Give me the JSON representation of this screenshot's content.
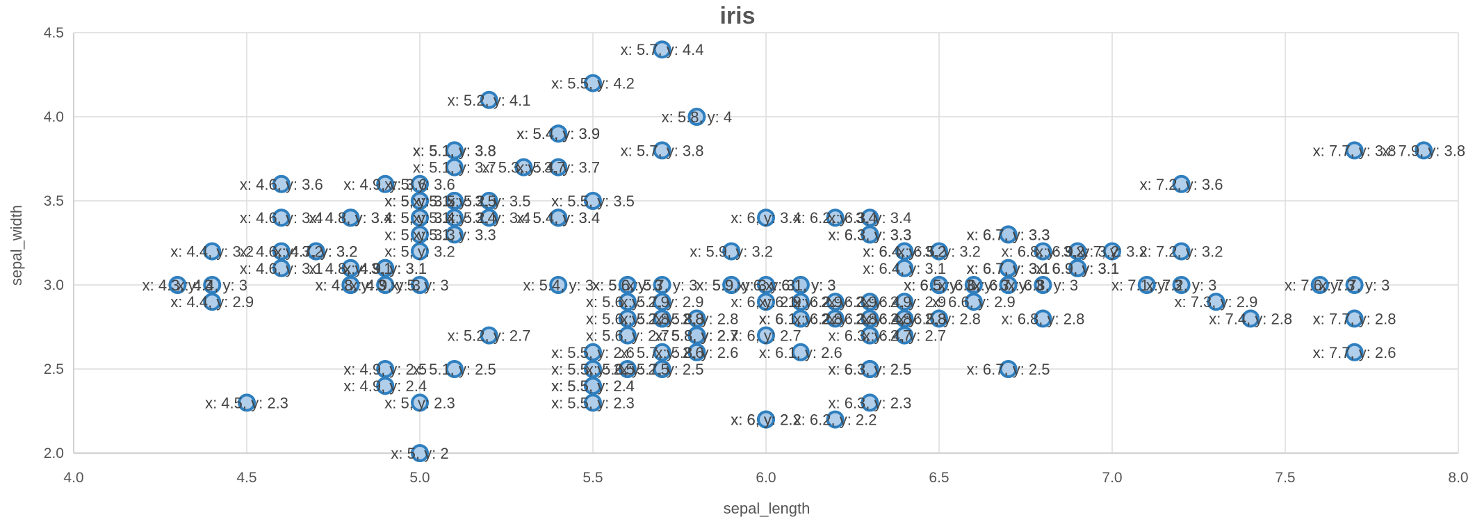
{
  "chart_data": {
    "type": "scatter",
    "title": "iris",
    "xlabel": "sepal_length",
    "ylabel": "sepal_width",
    "xlim": [
      4.0,
      8.0
    ],
    "ylim": [
      2.0,
      4.5
    ],
    "xticks": [
      "4.0",
      "4.5",
      "5.0",
      "5.5",
      "6.0",
      "6.5",
      "7.0",
      "7.5",
      "8.0"
    ],
    "yticks": [
      "2.0",
      "2.5",
      "3.0",
      "3.5",
      "4.0",
      "4.5"
    ],
    "grid": true,
    "colors": {
      "point_fill": "#a8c9e8",
      "point_stroke": "#2f7fbf",
      "grid": "#dcdcdc",
      "text": "#555555"
    },
    "points": [
      {
        "x": 5.1,
        "y": 3.5
      },
      {
        "x": 4.9,
        "y": 3.0
      },
      {
        "x": 4.7,
        "y": 3.2
      },
      {
        "x": 4.6,
        "y": 3.1
      },
      {
        "x": 5.0,
        "y": 3.6
      },
      {
        "x": 5.4,
        "y": 3.9
      },
      {
        "x": 4.6,
        "y": 3.4
      },
      {
        "x": 5.0,
        "y": 3.4
      },
      {
        "x": 4.4,
        "y": 2.9
      },
      {
        "x": 4.9,
        "y": 3.1
      },
      {
        "x": 5.4,
        "y": 3.7
      },
      {
        "x": 4.8,
        "y": 3.4
      },
      {
        "x": 4.8,
        "y": 3.0
      },
      {
        "x": 4.3,
        "y": 3.0
      },
      {
        "x": 5.8,
        "y": 4.0
      },
      {
        "x": 5.7,
        "y": 4.4
      },
      {
        "x": 5.4,
        "y": 3.9
      },
      {
        "x": 5.1,
        "y": 3.5
      },
      {
        "x": 5.7,
        "y": 3.8
      },
      {
        "x": 5.1,
        "y": 3.8
      },
      {
        "x": 5.4,
        "y": 3.4
      },
      {
        "x": 5.1,
        "y": 3.7
      },
      {
        "x": 4.6,
        "y": 3.6
      },
      {
        "x": 5.1,
        "y": 3.3
      },
      {
        "x": 4.8,
        "y": 3.4
      },
      {
        "x": 5.0,
        "y": 3.0
      },
      {
        "x": 5.0,
        "y": 3.4
      },
      {
        "x": 5.2,
        "y": 3.5
      },
      {
        "x": 5.2,
        "y": 3.4
      },
      {
        "x": 4.7,
        "y": 3.2
      },
      {
        "x": 4.8,
        "y": 3.1
      },
      {
        "x": 5.4,
        "y": 3.4
      },
      {
        "x": 5.2,
        "y": 4.1
      },
      {
        "x": 5.5,
        "y": 4.2
      },
      {
        "x": 4.9,
        "y": 3.1
      },
      {
        "x": 5.0,
        "y": 3.2
      },
      {
        "x": 5.5,
        "y": 3.5
      },
      {
        "x": 4.9,
        "y": 3.6
      },
      {
        "x": 4.4,
        "y": 3.0
      },
      {
        "x": 5.1,
        "y": 3.4
      },
      {
        "x": 5.0,
        "y": 3.5
      },
      {
        "x": 4.5,
        "y": 2.3
      },
      {
        "x": 4.4,
        "y": 3.2
      },
      {
        "x": 5.0,
        "y": 3.5
      },
      {
        "x": 5.1,
        "y": 3.8
      },
      {
        "x": 4.8,
        "y": 3.0
      },
      {
        "x": 5.1,
        "y": 3.8
      },
      {
        "x": 4.6,
        "y": 3.2
      },
      {
        "x": 5.3,
        "y": 3.7
      },
      {
        "x": 5.0,
        "y": 3.3
      },
      {
        "x": 7.0,
        "y": 3.2
      },
      {
        "x": 6.4,
        "y": 3.2
      },
      {
        "x": 6.9,
        "y": 3.1
      },
      {
        "x": 5.5,
        "y": 2.3
      },
      {
        "x": 6.5,
        "y": 2.8
      },
      {
        "x": 5.7,
        "y": 2.8
      },
      {
        "x": 6.3,
        "y": 3.3
      },
      {
        "x": 4.9,
        "y": 2.4
      },
      {
        "x": 6.6,
        "y": 2.9
      },
      {
        "x": 5.2,
        "y": 2.7
      },
      {
        "x": 5.0,
        "y": 2.0
      },
      {
        "x": 5.9,
        "y": 3.0
      },
      {
        "x": 6.0,
        "y": 2.2
      },
      {
        "x": 6.1,
        "y": 2.9
      },
      {
        "x": 5.6,
        "y": 2.9
      },
      {
        "x": 6.7,
        "y": 3.1
      },
      {
        "x": 5.6,
        "y": 3.0
      },
      {
        "x": 5.8,
        "y": 2.7
      },
      {
        "x": 6.2,
        "y": 2.2
      },
      {
        "x": 5.6,
        "y": 2.5
      },
      {
        "x": 5.9,
        "y": 3.2
      },
      {
        "x": 6.1,
        "y": 2.8
      },
      {
        "x": 6.3,
        "y": 2.5
      },
      {
        "x": 6.1,
        "y": 2.8
      },
      {
        "x": 6.4,
        "y": 2.9
      },
      {
        "x": 6.6,
        "y": 3.0
      },
      {
        "x": 6.8,
        "y": 2.8
      },
      {
        "x": 6.7,
        "y": 3.0
      },
      {
        "x": 6.0,
        "y": 2.9
      },
      {
        "x": 5.7,
        "y": 2.6
      },
      {
        "x": 5.5,
        "y": 2.4
      },
      {
        "x": 5.5,
        "y": 2.4
      },
      {
        "x": 5.8,
        "y": 2.7
      },
      {
        "x": 6.0,
        "y": 2.7
      },
      {
        "x": 5.4,
        "y": 3.0
      },
      {
        "x": 6.0,
        "y": 3.4
      },
      {
        "x": 6.7,
        "y": 3.1
      },
      {
        "x": 6.3,
        "y": 2.3
      },
      {
        "x": 5.6,
        "y": 3.0
      },
      {
        "x": 5.5,
        "y": 2.5
      },
      {
        "x": 5.5,
        "y": 2.6
      },
      {
        "x": 6.1,
        "y": 3.0
      },
      {
        "x": 5.8,
        "y": 2.6
      },
      {
        "x": 5.0,
        "y": 2.3
      },
      {
        "x": 5.6,
        "y": 2.7
      },
      {
        "x": 5.7,
        "y": 3.0
      },
      {
        "x": 5.7,
        "y": 2.9
      },
      {
        "x": 6.2,
        "y": 2.9
      },
      {
        "x": 5.1,
        "y": 2.5
      },
      {
        "x": 5.7,
        "y": 2.8
      },
      {
        "x": 6.3,
        "y": 3.3
      },
      {
        "x": 5.8,
        "y": 2.7
      },
      {
        "x": 7.1,
        "y": 3.0
      },
      {
        "x": 6.3,
        "y": 2.9
      },
      {
        "x": 6.5,
        "y": 3.0
      },
      {
        "x": 7.6,
        "y": 3.0
      },
      {
        "x": 4.9,
        "y": 2.5
      },
      {
        "x": 7.3,
        "y": 2.9
      },
      {
        "x": 6.7,
        "y": 2.5
      },
      {
        "x": 7.2,
        "y": 3.6
      },
      {
        "x": 6.5,
        "y": 3.2
      },
      {
        "x": 6.4,
        "y": 2.7
      },
      {
        "x": 6.8,
        "y": 3.0
      },
      {
        "x": 5.7,
        "y": 2.5
      },
      {
        "x": 5.8,
        "y": 2.8
      },
      {
        "x": 6.4,
        "y": 3.2
      },
      {
        "x": 6.5,
        "y": 3.0
      },
      {
        "x": 7.7,
        "y": 3.8
      },
      {
        "x": 7.7,
        "y": 2.6
      },
      {
        "x": 6.0,
        "y": 2.2
      },
      {
        "x": 6.9,
        "y": 3.2
      },
      {
        "x": 5.6,
        "y": 2.8
      },
      {
        "x": 7.7,
        "y": 2.8
      },
      {
        "x": 6.3,
        "y": 2.7
      },
      {
        "x": 6.7,
        "y": 3.3
      },
      {
        "x": 7.2,
        "y": 3.2
      },
      {
        "x": 6.2,
        "y": 2.8
      },
      {
        "x": 6.1,
        "y": 3.0
      },
      {
        "x": 6.4,
        "y": 2.8
      },
      {
        "x": 7.2,
        "y": 3.0
      },
      {
        "x": 7.4,
        "y": 2.8
      },
      {
        "x": 7.9,
        "y": 3.8
      },
      {
        "x": 6.4,
        "y": 2.8
      },
      {
        "x": 6.3,
        "y": 2.8
      },
      {
        "x": 6.1,
        "y": 2.6
      },
      {
        "x": 7.7,
        "y": 3.0
      },
      {
        "x": 6.3,
        "y": 3.4
      },
      {
        "x": 6.4,
        "y": 3.1
      },
      {
        "x": 6.0,
        "y": 3.0
      },
      {
        "x": 6.9,
        "y": 3.1
      },
      {
        "x": 6.7,
        "y": 3.1
      },
      {
        "x": 6.9,
        "y": 3.1
      },
      {
        "x": 5.8,
        "y": 2.7
      },
      {
        "x": 6.8,
        "y": 3.2
      },
      {
        "x": 6.7,
        "y": 3.3
      },
      {
        "x": 6.7,
        "y": 3.0
      },
      {
        "x": 6.3,
        "y": 2.5
      },
      {
        "x": 6.5,
        "y": 3.0
      },
      {
        "x": 6.2,
        "y": 3.4
      },
      {
        "x": 5.9,
        "y": 3.0
      }
    ]
  }
}
